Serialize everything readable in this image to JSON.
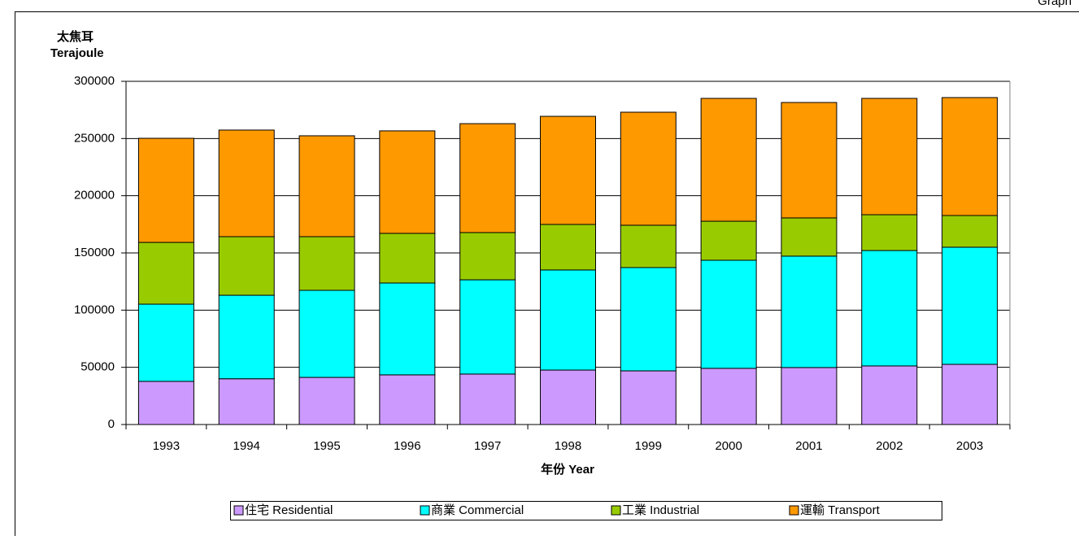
{
  "header": {
    "label": "Graph"
  },
  "chart_data": {
    "type": "stacked_bar",
    "y_label_zh": "太焦耳",
    "y_label": "Terajoule",
    "x_label": "年份 Year",
    "categories": [
      "1993",
      "1994",
      "1995",
      "1996",
      "1997",
      "1998",
      "1999",
      "2000",
      "2001",
      "2002",
      "2003"
    ],
    "series": [
      {
        "name": "住宅 Residential",
        "color": "#cc99ff",
        "values": [
          37700,
          40000,
          41200,
          43400,
          44100,
          47600,
          46900,
          49100,
          49800,
          51200,
          52600
        ]
      },
      {
        "name": "商業 Commercial",
        "color": "#00ffff",
        "values": [
          67500,
          73000,
          76100,
          80300,
          82400,
          87500,
          90300,
          94500,
          97400,
          100900,
          102400
        ]
      },
      {
        "name": "工業 Industrial",
        "color": "#99cc00",
        "values": [
          54000,
          51200,
          46900,
          43400,
          41300,
          39800,
          37000,
          34100,
          33400,
          31300,
          27700
        ]
      },
      {
        "name": "運輸 Transport",
        "color": "#ff9900",
        "values": [
          91000,
          93200,
          88200,
          89600,
          95200,
          94500,
          98800,
          107400,
          100900,
          101700,
          103100
        ]
      }
    ],
    "ylim": [
      0,
      300000
    ],
    "yticks": [
      0,
      50000,
      100000,
      150000,
      200000,
      250000,
      300000
    ],
    "grid": true
  }
}
